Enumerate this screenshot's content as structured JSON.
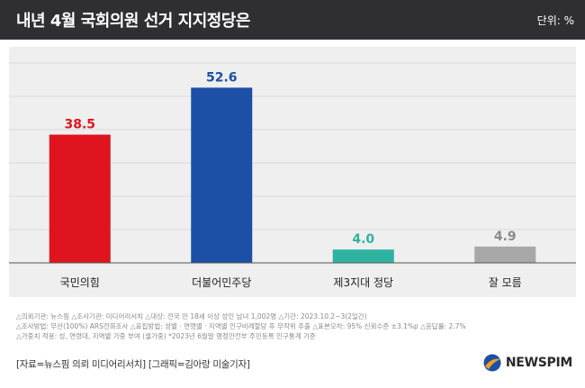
{
  "header": {
    "title": "내년 4월 국회의원 선거 지지정당은",
    "unit": "단위: %"
  },
  "chart_data": {
    "type": "bar",
    "title": "내년 4월 국회의원 선거 지지정당은",
    "unit": "%",
    "categories": [
      "국민의힘",
      "더불어민주당",
      "제3지대 정당",
      "잘 모름"
    ],
    "values": [
      38.5,
      52.6,
      4.0,
      4.9
    ],
    "value_labels": [
      "38.5",
      "52.6",
      "4.0",
      "4.9"
    ],
    "colors": [
      "#e0141f",
      "#1c4fa6",
      "#2eb3a0",
      "#a8a8a8"
    ],
    "label_colors": [
      "#e0141f",
      "#1c4fa6",
      "#2eb3a0",
      "#8a8a8a"
    ],
    "ylim": [
      0,
      60
    ],
    "grid": true
  },
  "notes": [
    "△의뢰기관: 뉴스핌 △조사기관: 미디어리서치 △대상: 전국 만 18세 이상 성인 남녀 1,002명 △기간: 2023.10.2~3(2일간)",
    "△조사방법: 무선(100%) ARS전화조사 △표집방법: 성별 · 연령별 · 지역별 인구비례할당 후 무작위 추출 △표본오차: 95% 신뢰수준 ±3.1%p △응답률: 2.7%",
    "△가중치 적용: 성, 연령대, 지역별 가중 부여 (셀가중) *2023년 6월말 행정안전부 주민등록 인구통계 기준"
  ],
  "credit": "[자료=뉴스핌 의뢰 미디어리서치] [그래픽=김아랑 미술기자]",
  "logo": {
    "text": "NEWSPIM",
    "icon": "newspim-logo-icon"
  }
}
